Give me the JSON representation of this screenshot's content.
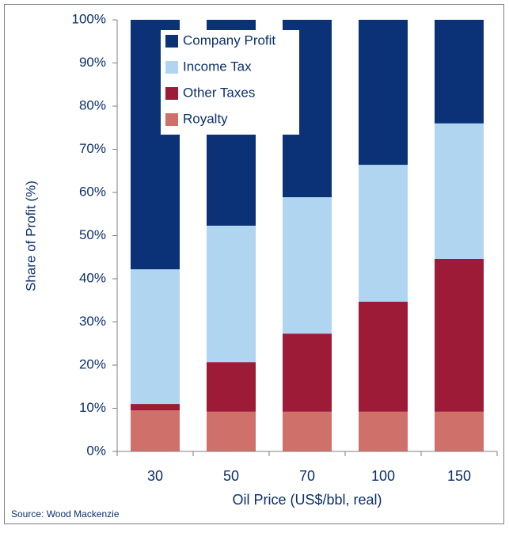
{
  "chart_data": {
    "type": "stacked_bar",
    "y_label": "Share of Profit (%)",
    "x_label": "Oil Price (US$/bbl, real)",
    "source": "Source: Wood Mackenzie",
    "categories": [
      "30",
      "50",
      "70",
      "100",
      "150"
    ],
    "series": [
      {
        "name": "Royalty",
        "color": "#d0706a",
        "values": [
          9.5,
          9.2,
          9.2,
          9.2,
          9.2
        ]
      },
      {
        "name": "Other Taxes",
        "color": "#9e1b37",
        "values": [
          1.5,
          11.5,
          18.1,
          25.5,
          35.4
        ]
      },
      {
        "name": "Income Tax",
        "color": "#afd5f1",
        "values": [
          31.2,
          31.6,
          31.6,
          31.7,
          31.4
        ]
      },
      {
        "name": "Company Profit",
        "color": "#0b3276",
        "values": [
          57.8,
          47.7,
          41.1,
          33.6,
          24.0
        ]
      }
    ],
    "ylim": [
      0,
      100
    ],
    "yticks": [
      {
        "value": 0,
        "label": "0%"
      },
      {
        "value": 10,
        "label": "10%"
      },
      {
        "value": 20,
        "label": "20%"
      },
      {
        "value": 30,
        "label": "30%"
      },
      {
        "value": 40,
        "label": "40%"
      },
      {
        "value": 50,
        "label": "50%"
      },
      {
        "value": 60,
        "label": "60%"
      },
      {
        "value": 70,
        "label": "70%"
      },
      {
        "value": 80,
        "label": "80%"
      },
      {
        "value": 90,
        "label": "90%"
      },
      {
        "value": 100,
        "label": "100%"
      }
    ],
    "legend": "top-left"
  }
}
